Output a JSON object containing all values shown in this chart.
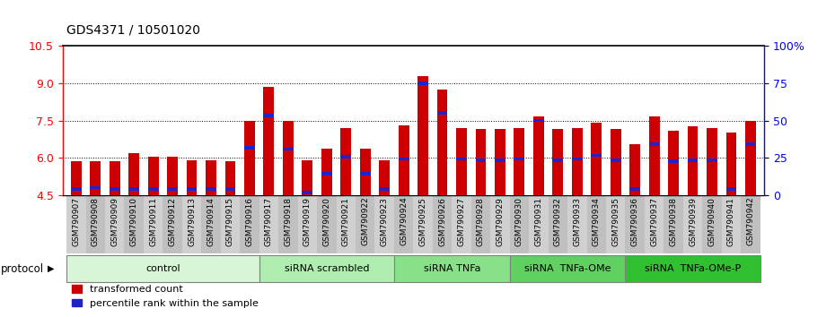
{
  "title": "GDS4371 / 10501020",
  "samples": [
    "GSM790907",
    "GSM790908",
    "GSM790909",
    "GSM790910",
    "GSM790911",
    "GSM790912",
    "GSM790913",
    "GSM790914",
    "GSM790915",
    "GSM790916",
    "GSM790917",
    "GSM790918",
    "GSM790919",
    "GSM790920",
    "GSM790921",
    "GSM790922",
    "GSM790923",
    "GSM790924",
    "GSM790925",
    "GSM790926",
    "GSM790927",
    "GSM790928",
    "GSM790929",
    "GSM790930",
    "GSM790931",
    "GSM790932",
    "GSM790933",
    "GSM790934",
    "GSM790935",
    "GSM790936",
    "GSM790937",
    "GSM790938",
    "GSM790939",
    "GSM790940",
    "GSM790941",
    "GSM790942"
  ],
  "red_values": [
    5.85,
    5.85,
    5.85,
    6.2,
    6.05,
    6.05,
    5.9,
    5.9,
    5.85,
    7.5,
    8.85,
    7.5,
    5.9,
    6.35,
    7.2,
    6.35,
    5.9,
    7.3,
    9.3,
    8.75,
    7.2,
    7.15,
    7.15,
    7.2,
    7.65,
    7.15,
    7.2,
    7.4,
    7.15,
    6.55,
    7.65,
    7.1,
    7.25,
    7.2,
    7.0,
    7.5
  ],
  "blue_values": [
    4.75,
    4.8,
    4.75,
    4.75,
    4.75,
    4.75,
    4.75,
    4.75,
    4.75,
    6.4,
    7.7,
    6.35,
    4.6,
    5.35,
    6.05,
    5.35,
    4.75,
    5.95,
    9.0,
    7.8,
    5.95,
    5.9,
    5.9,
    5.95,
    7.5,
    5.9,
    5.95,
    6.1,
    5.9,
    4.75,
    6.55,
    5.85,
    5.9,
    5.9,
    4.75,
    6.55
  ],
  "ylim": [
    4.5,
    10.5
  ],
  "yticks_left": [
    4.5,
    6.0,
    7.5,
    9.0,
    10.5
  ],
  "bar_color": "#cc0000",
  "blue_color": "#2222cc",
  "bar_width": 0.55,
  "group_colors": [
    "#d8f5d8",
    "#b0edb0",
    "#88e088",
    "#60d060",
    "#30c030"
  ],
  "groups": [
    {
      "label": "control",
      "start": 0,
      "end": 10
    },
    {
      "label": "siRNA scrambled",
      "start": 10,
      "end": 17
    },
    {
      "label": "siRNA TNFa",
      "start": 17,
      "end": 23
    },
    {
      "label": "siRNA  TNFa-OMe",
      "start": 23,
      "end": 29
    },
    {
      "label": "siRNA  TNFa-OMe-P",
      "start": 29,
      "end": 36
    }
  ],
  "protocol_label": "protocol",
  "legend_red": "transformed count",
  "legend_blue": "percentile rank within the sample",
  "right_yticks": [
    0,
    25,
    50,
    75,
    100
  ],
  "right_ylabels": [
    "0",
    "25",
    "50",
    "75",
    "100%"
  ]
}
